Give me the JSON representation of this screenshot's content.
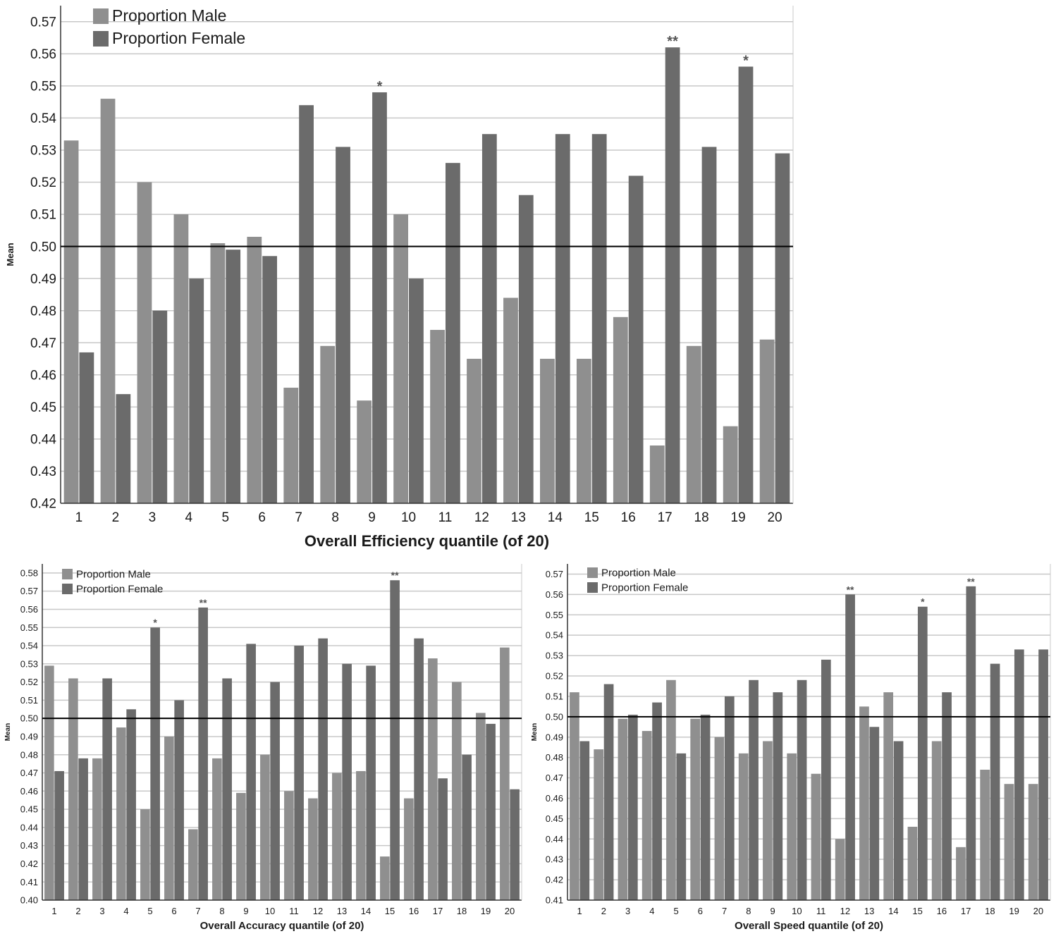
{
  "colors": {
    "male": "#8f8f8f",
    "female": "#6b6b6b",
    "grid": "#c8c8c8",
    "axis": "#333333",
    "refline": "#000000"
  },
  "chart_data": [
    {
      "type": "bar",
      "xlabel": "Overall Efficiency quantile (of 20)",
      "ylabel": "Mean",
      "ylim": [
        0.42,
        0.575
      ],
      "yticks": [
        "0.42",
        "0.43",
        "0.44",
        "0.45",
        "0.46",
        "0.47",
        "0.48",
        "0.49",
        "0.50",
        "0.51",
        "0.52",
        "0.53",
        "0.54",
        "0.55",
        "0.56",
        "0.57"
      ],
      "reference_line": 0.5,
      "grid": true,
      "legend_position": "top-left",
      "categories": [
        "1",
        "2",
        "3",
        "4",
        "5",
        "6",
        "7",
        "8",
        "9",
        "10",
        "11",
        "12",
        "13",
        "14",
        "15",
        "16",
        "17",
        "18",
        "19",
        "20"
      ],
      "series": [
        {
          "name": "Proportion Male",
          "values": [
            0.533,
            0.546,
            0.52,
            0.51,
            0.501,
            0.503,
            0.456,
            0.469,
            0.452,
            0.51,
            0.474,
            0.465,
            0.484,
            0.465,
            0.465,
            0.478,
            0.438,
            0.469,
            0.444,
            0.471
          ]
        },
        {
          "name": "Proportion Female",
          "values": [
            0.467,
            0.454,
            0.48,
            0.49,
            0.499,
            0.497,
            0.544,
            0.531,
            0.548,
            0.49,
            0.526,
            0.535,
            0.516,
            0.535,
            0.535,
            0.522,
            0.562,
            0.531,
            0.556,
            0.529
          ]
        }
      ],
      "annotations": [
        {
          "category": "9",
          "text": "*"
        },
        {
          "category": "17",
          "text": "**"
        },
        {
          "category": "19",
          "text": "*"
        }
      ]
    },
    {
      "type": "bar",
      "xlabel": "Overall Accuracy quantile (of 20)",
      "ylabel": "Mean",
      "ylim": [
        0.4,
        0.585
      ],
      "yticks": [
        "0.40",
        "0.41",
        "0.42",
        "0.43",
        "0.44",
        "0.45",
        "0.46",
        "0.47",
        "0.48",
        "0.49",
        "0.50",
        "0.51",
        "0.52",
        "0.53",
        "0.54",
        "0.55",
        "0.56",
        "0.57",
        "0.58"
      ],
      "reference_line": 0.5,
      "grid": true,
      "legend_position": "top-left",
      "categories": [
        "1",
        "2",
        "3",
        "4",
        "5",
        "6",
        "7",
        "8",
        "9",
        "10",
        "11",
        "12",
        "13",
        "14",
        "15",
        "16",
        "17",
        "18",
        "19",
        "20"
      ],
      "series": [
        {
          "name": "Proportion Male",
          "values": [
            0.529,
            0.522,
            0.478,
            0.495,
            0.45,
            0.49,
            0.439,
            0.478,
            0.459,
            0.48,
            0.46,
            0.456,
            0.47,
            0.471,
            0.424,
            0.456,
            0.533,
            0.52,
            0.503,
            0.539
          ]
        },
        {
          "name": "Proportion Female",
          "values": [
            0.471,
            0.478,
            0.522,
            0.505,
            0.55,
            0.51,
            0.561,
            0.522,
            0.541,
            0.52,
            0.54,
            0.544,
            0.53,
            0.529,
            0.576,
            0.544,
            0.467,
            0.48,
            0.497,
            0.461
          ]
        }
      ],
      "annotations": [
        {
          "category": "5",
          "text": "*"
        },
        {
          "category": "7",
          "text": "**"
        },
        {
          "category": "15",
          "text": "**"
        }
      ]
    },
    {
      "type": "bar",
      "xlabel": "Overall Speed quantile (of 20)",
      "ylabel": "Mean",
      "ylim": [
        0.41,
        0.575
      ],
      "yticks": [
        "0.41",
        "0.42",
        "0.43",
        "0.44",
        "0.45",
        "0.46",
        "0.47",
        "0.48",
        "0.49",
        "0.50",
        "0.51",
        "0.52",
        "0.53",
        "0.54",
        "0.55",
        "0.56",
        "0.57"
      ],
      "reference_line": 0.5,
      "grid": true,
      "legend_position": "top-left",
      "categories": [
        "1",
        "2",
        "3",
        "4",
        "5",
        "6",
        "7",
        "8",
        "9",
        "10",
        "11",
        "12",
        "13",
        "14",
        "15",
        "16",
        "17",
        "18",
        "19",
        "20"
      ],
      "series": [
        {
          "name": "Proportion Male",
          "values": [
            0.512,
            0.484,
            0.499,
            0.493,
            0.518,
            0.499,
            0.49,
            0.482,
            0.488,
            0.482,
            0.472,
            0.44,
            0.505,
            0.512,
            0.446,
            0.488,
            0.436,
            0.474,
            0.467,
            0.467
          ]
        },
        {
          "name": "Proportion Female",
          "values": [
            0.488,
            0.516,
            0.501,
            0.507,
            0.482,
            0.501,
            0.51,
            0.518,
            0.512,
            0.518,
            0.528,
            0.56,
            0.495,
            0.488,
            0.554,
            0.512,
            0.564,
            0.526,
            0.533,
            0.533
          ]
        }
      ],
      "annotations": [
        {
          "category": "12",
          "text": "**"
        },
        {
          "category": "15",
          "text": "*"
        },
        {
          "category": "17",
          "text": "**"
        }
      ]
    }
  ]
}
